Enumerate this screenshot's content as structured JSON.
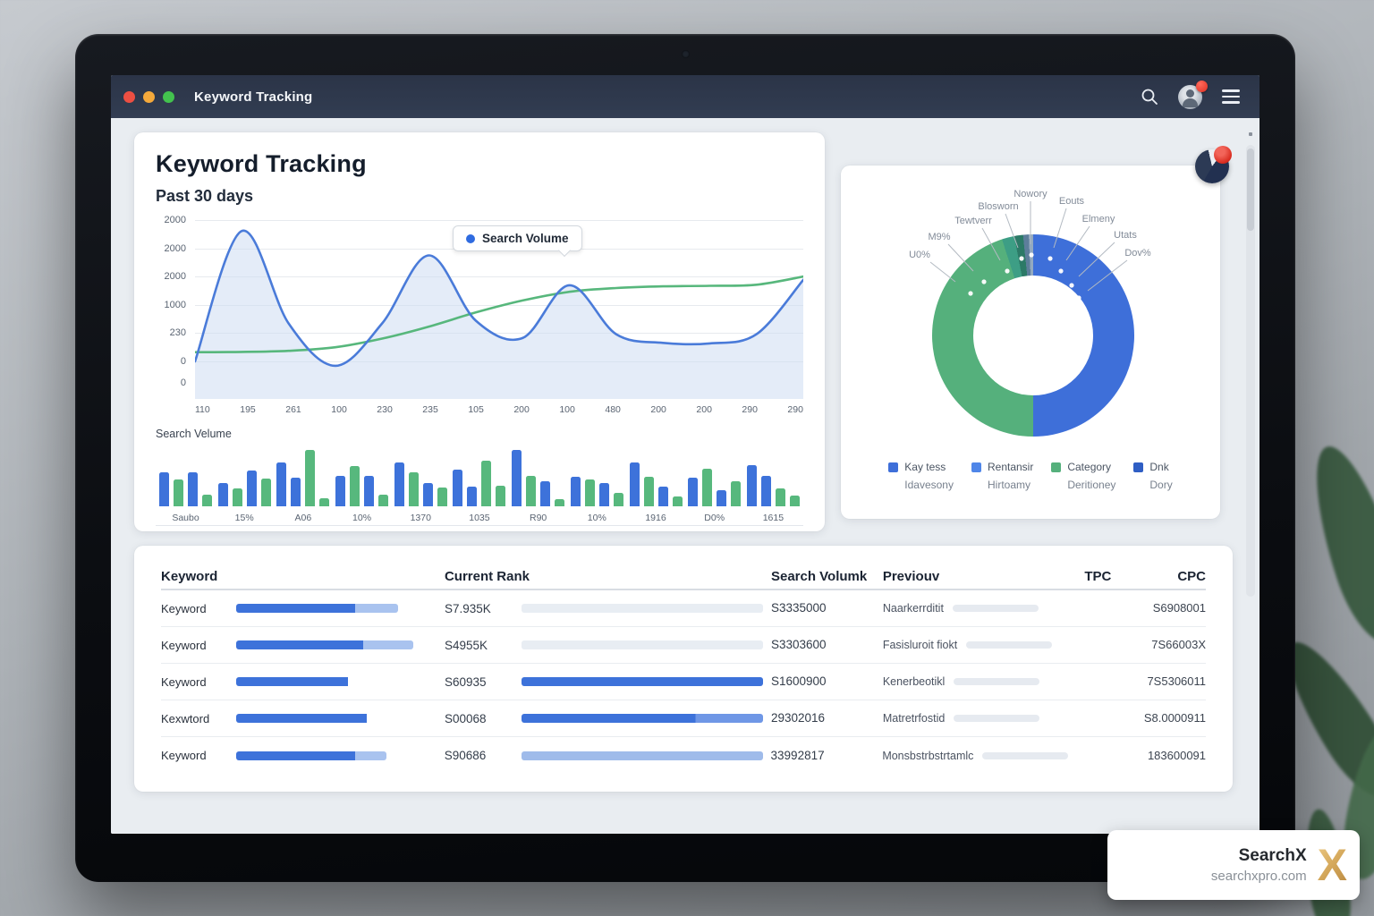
{
  "window": {
    "title": "Keyword Tracking"
  },
  "page": {
    "title": "Keyword Tracking",
    "subtitle": "Past 30 days"
  },
  "topbar": {
    "icons": [
      "search-icon",
      "user-avatar",
      "menu-icon"
    ]
  },
  "colors": {
    "accent_blue": "#3d72da",
    "accent_green": "#57b87d",
    "titlebar": "#2f394d",
    "traffic": [
      "#ed4f42",
      "#f5a93b",
      "#43c24e"
    ]
  },
  "chart_data": [
    {
      "type": "line",
      "title": "Past 30 days",
      "legend": [
        {
          "label": "Search Volume",
          "color": "#2f6be0"
        }
      ],
      "legend_position": "top",
      "grid": true,
      "y_ticks": [
        "2000",
        "2000",
        "2000",
        "1000",
        "230",
        "0",
        "0"
      ],
      "x_ticks": [
        "110",
        "195",
        "261",
        "100",
        "230",
        "235",
        "105",
        "200",
        "100",
        "480",
        "200",
        "200",
        "290",
        "290"
      ],
      "ymax": 2600,
      "ymin": -130,
      "series": [
        {
          "name": "Search Volume",
          "color": "#4a7bd9",
          "area": true,
          "fill_color": "#cdddf2",
          "values": [
            0,
            2400,
            700,
            -80,
            700,
            1950,
            750,
            430,
            1400,
            500,
            340,
            330,
            500,
            1500
          ]
        },
        {
          "name": "Trend",
          "color": "#57b77c",
          "area": false,
          "values": [
            170,
            175,
            195,
            260,
            420,
            640,
            900,
            1120,
            1280,
            1350,
            1380,
            1390,
            1410,
            1560
          ]
        }
      ]
    },
    {
      "type": "bar",
      "title": "Search Velume",
      "categories": [
        "Saubo",
        "15%",
        "A06",
        "10%",
        "1370",
        "1035",
        "R90",
        "10%",
        "1916",
        "D0%",
        "1615"
      ],
      "colors": {
        "b": "#3d72da",
        "g": "#57b87d"
      },
      "ylim": [
        0,
        100
      ],
      "bars": [
        {
          "v": 58,
          "c": "b"
        },
        {
          "v": 45,
          "c": "g"
        },
        {
          "v": 58,
          "c": "b"
        },
        {
          "v": 20,
          "c": "g"
        },
        {
          "v": 40,
          "c": "b"
        },
        {
          "v": 30,
          "c": "g"
        },
        {
          "v": 60,
          "c": "b"
        },
        {
          "v": 47,
          "c": "g"
        },
        {
          "v": 75,
          "c": "b"
        },
        {
          "v": 48,
          "c": "b"
        },
        {
          "v": 95,
          "c": "g"
        },
        {
          "v": 14,
          "c": "g"
        },
        {
          "v": 52,
          "c": "b"
        },
        {
          "v": 68,
          "c": "g"
        },
        {
          "v": 52,
          "c": "b"
        },
        {
          "v": 20,
          "c": "g"
        },
        {
          "v": 74,
          "c": "b"
        },
        {
          "v": 58,
          "c": "g"
        },
        {
          "v": 40,
          "c": "b"
        },
        {
          "v": 32,
          "c": "g"
        },
        {
          "v": 62,
          "c": "b"
        },
        {
          "v": 33,
          "c": "b"
        },
        {
          "v": 78,
          "c": "g"
        },
        {
          "v": 35,
          "c": "g"
        },
        {
          "v": 96,
          "c": "b"
        },
        {
          "v": 52,
          "c": "g"
        },
        {
          "v": 42,
          "c": "b"
        },
        {
          "v": 12,
          "c": "g"
        },
        {
          "v": 50,
          "c": "b"
        },
        {
          "v": 46,
          "c": "g"
        },
        {
          "v": 40,
          "c": "b"
        },
        {
          "v": 22,
          "c": "g"
        },
        {
          "v": 74,
          "c": "b"
        },
        {
          "v": 50,
          "c": "g"
        },
        {
          "v": 34,
          "c": "b"
        },
        {
          "v": 17,
          "c": "g"
        },
        {
          "v": 48,
          "c": "b"
        },
        {
          "v": 64,
          "c": "g"
        },
        {
          "v": 28,
          "c": "b"
        },
        {
          "v": 42,
          "c": "g"
        },
        {
          "v": 70,
          "c": "b"
        },
        {
          "v": 52,
          "c": "b"
        },
        {
          "v": 30,
          "c": "g"
        },
        {
          "v": 18,
          "c": "g"
        }
      ]
    },
    {
      "type": "pie",
      "donut": true,
      "segments": [
        {
          "label": "Kay tess",
          "pct": 50,
          "color": "#3e6fd9"
        },
        {
          "label": "Category",
          "pct": 45,
          "color": "#55b07c"
        },
        {
          "label": "Tewtverr",
          "pct": 2,
          "color": "#3d9e85"
        },
        {
          "label": "Blosworn",
          "pct": 1.4,
          "color": "#2c7a67"
        },
        {
          "label": "Nowory",
          "pct": 0.9,
          "color": "#5d7e9b"
        },
        {
          "label": "Eouts",
          "pct": 0.7,
          "color": "#93a9c0"
        }
      ],
      "callouts": [
        "U0%",
        "M9%",
        "Tewtverr",
        "Blosworn",
        "Nowory",
        "Eouts",
        "Elmeny",
        "Utats",
        "Dov%"
      ],
      "legend_position": "bottom",
      "legend": [
        {
          "label": "Kay tess",
          "sub": "Idavesony",
          "color": "#3e6fd9"
        },
        {
          "label": "Rentansir",
          "sub": "Hirtoamy",
          "color": "#4f86e8"
        },
        {
          "label": "Category",
          "sub": "Deritioney",
          "color": "#55b07c"
        },
        {
          "label": "Dnk",
          "sub": "Dory",
          "color": "#2f5ec4"
        }
      ]
    }
  ],
  "table": {
    "headers": [
      "Keyword",
      "Current Rank",
      "Search Volumk",
      "Previouv",
      "TPC",
      "CPC"
    ],
    "rows": [
      {
        "keyword": "Keyword",
        "kw_fill": 62,
        "kw_light": 22,
        "rank": "S7.935K",
        "rank_bar": "gray",
        "volume": "S3335000",
        "previous": "Naarkerrditit",
        "cpc": "S6908001"
      },
      {
        "keyword": "Keyword",
        "kw_fill": 66,
        "kw_light": 26,
        "rank": "S4955K",
        "rank_bar": "gray",
        "volume": "S3303600",
        "previous": "Fasisluroit fiokt",
        "cpc": "7S66003X"
      },
      {
        "keyword": "Keyword",
        "kw_fill": 58,
        "kw_light": 0,
        "rank": "S60935",
        "rank_bar": "blue",
        "volume": "S1600900",
        "previous": "Kenerbeotikl",
        "cpc": "7S5306011"
      },
      {
        "keyword": "Kexwtord",
        "kw_fill": 68,
        "kw_light": 0,
        "rank": "S00068",
        "rank_bar": "blue-seg",
        "volume": "29302016",
        "previous": "Matretrfostid",
        "cpc": "S8.0000911"
      },
      {
        "keyword": "Keyword",
        "kw_fill": 62,
        "kw_light": 16,
        "rank": "S90686",
        "rank_bar": "lightblue",
        "volume": "33992817",
        "previous": "Monsbstrbstrtamlc",
        "cpc": "183600091"
      }
    ]
  },
  "watermark": {
    "brand": "SearchX",
    "domain": "searchxpro.com",
    "mark": "X"
  }
}
